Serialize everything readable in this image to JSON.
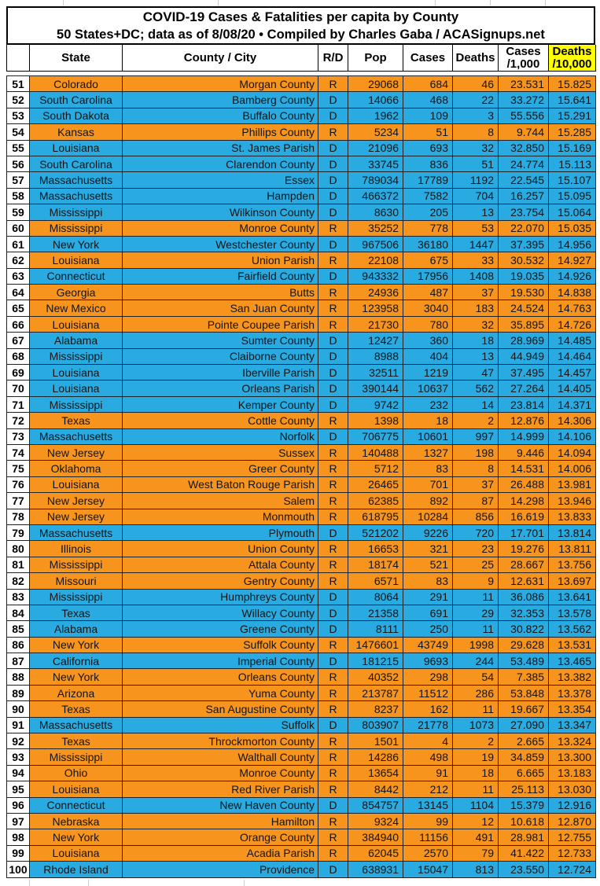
{
  "title": {
    "line1": "COVID-19 Cases & Fatalities per capita by County",
    "line2": "50 States+DC; data as of 8/08/20  • Compiled by Charles Gaba / ACASignups.net"
  },
  "columns": {
    "rank": "",
    "state": "State",
    "county": "County / City",
    "rd": "R/D",
    "pop": "Pop",
    "cases": "Cases",
    "deaths": "Deaths",
    "cases_per_line1": "Cases",
    "cases_per_line2": "/1,000",
    "deaths_per_line1": "Deaths",
    "deaths_per_line2": "/10,000"
  },
  "colors": {
    "republican_row": "#F7941E",
    "democrat_row": "#29ABE2",
    "deaths_header_bg": "#FFFF00"
  },
  "rows": [
    [
      "51",
      "Colorado",
      "Morgan County",
      "R",
      "29068",
      "684",
      "46",
      "23.531",
      "15.825"
    ],
    [
      "52",
      "South Carolina",
      "Bamberg County",
      "D",
      "14066",
      "468",
      "22",
      "33.272",
      "15.641"
    ],
    [
      "53",
      "South Dakota",
      "Buffalo County",
      "D",
      "1962",
      "109",
      "3",
      "55.556",
      "15.291"
    ],
    [
      "54",
      "Kansas",
      "Phillips County",
      "R",
      "5234",
      "51",
      "8",
      "9.744",
      "15.285"
    ],
    [
      "55",
      "Louisiana",
      "St. James Parish",
      "D",
      "21096",
      "693",
      "32",
      "32.850",
      "15.169"
    ],
    [
      "56",
      "South Carolina",
      "Clarendon County",
      "D",
      "33745",
      "836",
      "51",
      "24.774",
      "15.113"
    ],
    [
      "57",
      "Massachusetts",
      "Essex",
      "D",
      "789034",
      "17789",
      "1192",
      "22.545",
      "15.107"
    ],
    [
      "58",
      "Massachusetts",
      "Hampden",
      "D",
      "466372",
      "7582",
      "704",
      "16.257",
      "15.095"
    ],
    [
      "59",
      "Mississippi",
      "Wilkinson County",
      "D",
      "8630",
      "205",
      "13",
      "23.754",
      "15.064"
    ],
    [
      "60",
      "Mississippi",
      "Monroe County",
      "R",
      "35252",
      "778",
      "53",
      "22.070",
      "15.035"
    ],
    [
      "61",
      "New York",
      "Westchester County",
      "D",
      "967506",
      "36180",
      "1447",
      "37.395",
      "14.956"
    ],
    [
      "62",
      "Louisiana",
      "Union Parish",
      "R",
      "22108",
      "675",
      "33",
      "30.532",
      "14.927"
    ],
    [
      "63",
      "Connecticut",
      "Fairfield County",
      "D",
      "943332",
      "17956",
      "1408",
      "19.035",
      "14.926"
    ],
    [
      "64",
      "Georgia",
      "Butts",
      "R",
      "24936",
      "487",
      "37",
      "19.530",
      "14.838"
    ],
    [
      "65",
      "New Mexico",
      "San Juan County",
      "R",
      "123958",
      "3040",
      "183",
      "24.524",
      "14.763"
    ],
    [
      "66",
      "Louisiana",
      "Pointe Coupee Parish",
      "R",
      "21730",
      "780",
      "32",
      "35.895",
      "14.726"
    ],
    [
      "67",
      "Alabama",
      "Sumter County",
      "D",
      "12427",
      "360",
      "18",
      "28.969",
      "14.485"
    ],
    [
      "68",
      "Mississippi",
      "Claiborne County",
      "D",
      "8988",
      "404",
      "13",
      "44.949",
      "14.464"
    ],
    [
      "69",
      "Louisiana",
      "Iberville Parish",
      "D",
      "32511",
      "1219",
      "47",
      "37.495",
      "14.457"
    ],
    [
      "70",
      "Louisiana",
      "Orleans Parish",
      "D",
      "390144",
      "10637",
      "562",
      "27.264",
      "14.405"
    ],
    [
      "71",
      "Mississippi",
      "Kemper County",
      "D",
      "9742",
      "232",
      "14",
      "23.814",
      "14.371"
    ],
    [
      "72",
      "Texas",
      "Cottle County",
      "R",
      "1398",
      "18",
      "2",
      "12.876",
      "14.306"
    ],
    [
      "73",
      "Massachusetts",
      "Norfolk",
      "D",
      "706775",
      "10601",
      "997",
      "14.999",
      "14.106"
    ],
    [
      "74",
      "New Jersey",
      "Sussex",
      "R",
      "140488",
      "1327",
      "198",
      "9.446",
      "14.094"
    ],
    [
      "75",
      "Oklahoma",
      "Greer County",
      "R",
      "5712",
      "83",
      "8",
      "14.531",
      "14.006"
    ],
    [
      "76",
      "Louisiana",
      "West Baton Rouge Parish",
      "R",
      "26465",
      "701",
      "37",
      "26.488",
      "13.981"
    ],
    [
      "77",
      "New Jersey",
      "Salem",
      "R",
      "62385",
      "892",
      "87",
      "14.298",
      "13.946"
    ],
    [
      "78",
      "New Jersey",
      "Monmouth",
      "R",
      "618795",
      "10284",
      "856",
      "16.619",
      "13.833"
    ],
    [
      "79",
      "Massachusetts",
      "Plymouth",
      "D",
      "521202",
      "9226",
      "720",
      "17.701",
      "13.814"
    ],
    [
      "80",
      "Illinois",
      "Union County",
      "R",
      "16653",
      "321",
      "23",
      "19.276",
      "13.811"
    ],
    [
      "81",
      "Mississippi",
      "Attala County",
      "R",
      "18174",
      "521",
      "25",
      "28.667",
      "13.756"
    ],
    [
      "82",
      "Missouri",
      "Gentry County",
      "R",
      "6571",
      "83",
      "9",
      "12.631",
      "13.697"
    ],
    [
      "83",
      "Mississippi",
      "Humphreys County",
      "D",
      "8064",
      "291",
      "11",
      "36.086",
      "13.641"
    ],
    [
      "84",
      "Texas",
      "Willacy County",
      "D",
      "21358",
      "691",
      "29",
      "32.353",
      "13.578"
    ],
    [
      "85",
      "Alabama",
      "Greene County",
      "D",
      "8111",
      "250",
      "11",
      "30.822",
      "13.562"
    ],
    [
      "86",
      "New York",
      "Suffolk County",
      "R",
      "1476601",
      "43749",
      "1998",
      "29.628",
      "13.531"
    ],
    [
      "87",
      "California",
      "Imperial County",
      "D",
      "181215",
      "9693",
      "244",
      "53.489",
      "13.465"
    ],
    [
      "88",
      "New York",
      "Orleans County",
      "R",
      "40352",
      "298",
      "54",
      "7.385",
      "13.382"
    ],
    [
      "89",
      "Arizona",
      "Yuma County",
      "R",
      "213787",
      "11512",
      "286",
      "53.848",
      "13.378"
    ],
    [
      "90",
      "Texas",
      "San Augustine County",
      "R",
      "8237",
      "162",
      "11",
      "19.667",
      "13.354"
    ],
    [
      "91",
      "Massachusetts",
      "Suffolk",
      "D",
      "803907",
      "21778",
      "1073",
      "27.090",
      "13.347"
    ],
    [
      "92",
      "Texas",
      "Throckmorton County",
      "R",
      "1501",
      "4",
      "2",
      "2.665",
      "13.324"
    ],
    [
      "93",
      "Mississippi",
      "Walthall County",
      "R",
      "14286",
      "498",
      "19",
      "34.859",
      "13.300"
    ],
    [
      "94",
      "Ohio",
      "Monroe County",
      "R",
      "13654",
      "91",
      "18",
      "6.665",
      "13.183"
    ],
    [
      "95",
      "Louisiana",
      "Red River Parish",
      "R",
      "8442",
      "212",
      "11",
      "25.113",
      "13.030"
    ],
    [
      "96",
      "Connecticut",
      "New Haven County",
      "D",
      "854757",
      "13145",
      "1104",
      "15.379",
      "12.916"
    ],
    [
      "97",
      "Nebraska",
      "Hamilton",
      "R",
      "9324",
      "99",
      "12",
      "10.618",
      "12.870"
    ],
    [
      "98",
      "New York",
      "Orange County",
      "R",
      "384940",
      "11156",
      "491",
      "28.981",
      "12.755"
    ],
    [
      "99",
      "Louisiana",
      "Acadia Parish",
      "R",
      "62045",
      "2570",
      "79",
      "41.422",
      "12.733"
    ],
    [
      "100",
      "Rhode Island",
      "Providence",
      "D",
      "638931",
      "15047",
      "813",
      "23.550",
      "12.724"
    ]
  ]
}
